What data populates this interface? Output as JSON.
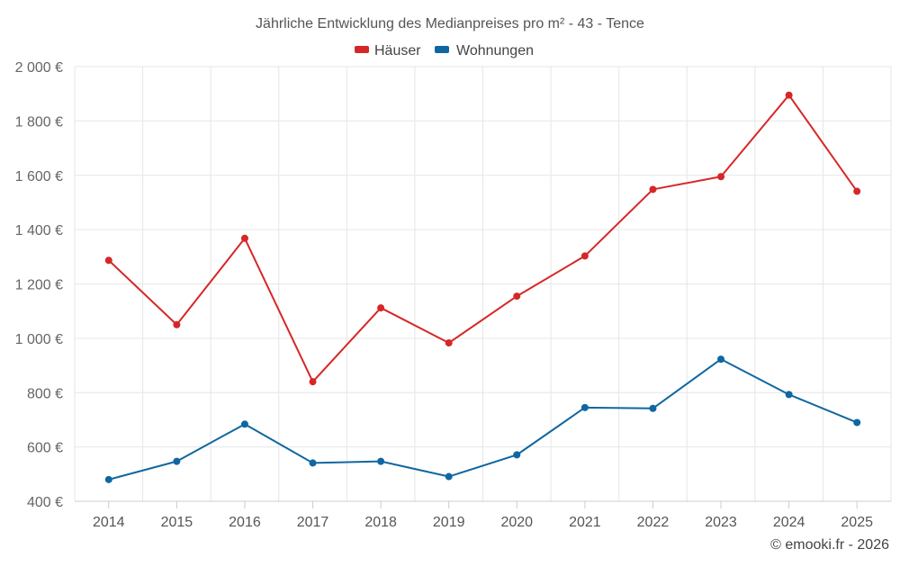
{
  "chart_data": {
    "type": "line",
    "title": "Jährliche Entwicklung des Medianpreises pro m² - 43 - Tence",
    "xlabel": "",
    "ylabel": "",
    "categories": [
      "2014",
      "2015",
      "2016",
      "2017",
      "2018",
      "2019",
      "2020",
      "2021",
      "2022",
      "2023",
      "2024",
      "2025"
    ],
    "ylim": [
      400,
      2000
    ],
    "yticks": [
      400,
      600,
      800,
      1000,
      1200,
      1400,
      1600,
      1800,
      2000
    ],
    "ytick_labels": [
      "400 €",
      "600 €",
      "800 €",
      "1 000 €",
      "1 200 €",
      "1 400 €",
      "1 600 €",
      "1 800 €",
      "2 000 €"
    ],
    "grid": true,
    "legend_position": "top-center",
    "series": [
      {
        "name": "Häuser",
        "color": "#d62728",
        "values": [
          1287,
          1050,
          1368,
          840,
          1112,
          983,
          1155,
          1303,
          1548,
          1595,
          1895,
          1541
        ]
      },
      {
        "name": "Wohnungen",
        "color": "#0f67a1",
        "values": [
          480,
          547,
          684,
          541,
          547,
          491,
          571,
          745,
          742,
          923,
          793,
          690
        ]
      }
    ],
    "credit": "© emooki.fr - 2026"
  }
}
